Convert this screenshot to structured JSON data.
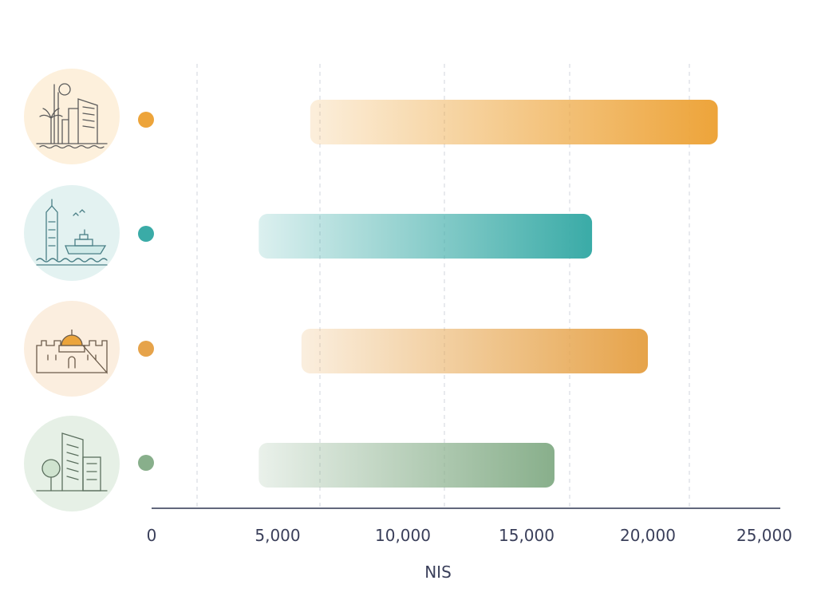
{
  "chart_data": {
    "type": "bar",
    "orientation": "horizontal",
    "categories": [
      "",
      "",
      "",
      ""
    ],
    "category_icons": [
      "coastal-city-icon",
      "port-city-icon",
      "old-city-dome-icon",
      "modern-city-icon"
    ],
    "series": [
      {
        "name": "",
        "ranges": [
          [
            6300,
            23000
          ],
          [
            4250,
            17700
          ],
          [
            5950,
            20000
          ],
          [
            4250,
            16150
          ]
        ],
        "colors": [
          "#EDA43A",
          "#3AABA7",
          "#E6A34A",
          "#88AF8B"
        ]
      }
    ],
    "xlabel": "NIS",
    "ylabel": "",
    "title": "",
    "xlim": [
      0,
      25000
    ],
    "x_ticks": [
      0,
      5000,
      10000,
      15000,
      20000,
      25000
    ],
    "x_tick_labels": [
      "0",
      "5,000",
      "10,000",
      "15,000",
      "20,000",
      "25,000"
    ],
    "grid": "vertical dashed",
    "legend": "none"
  }
}
